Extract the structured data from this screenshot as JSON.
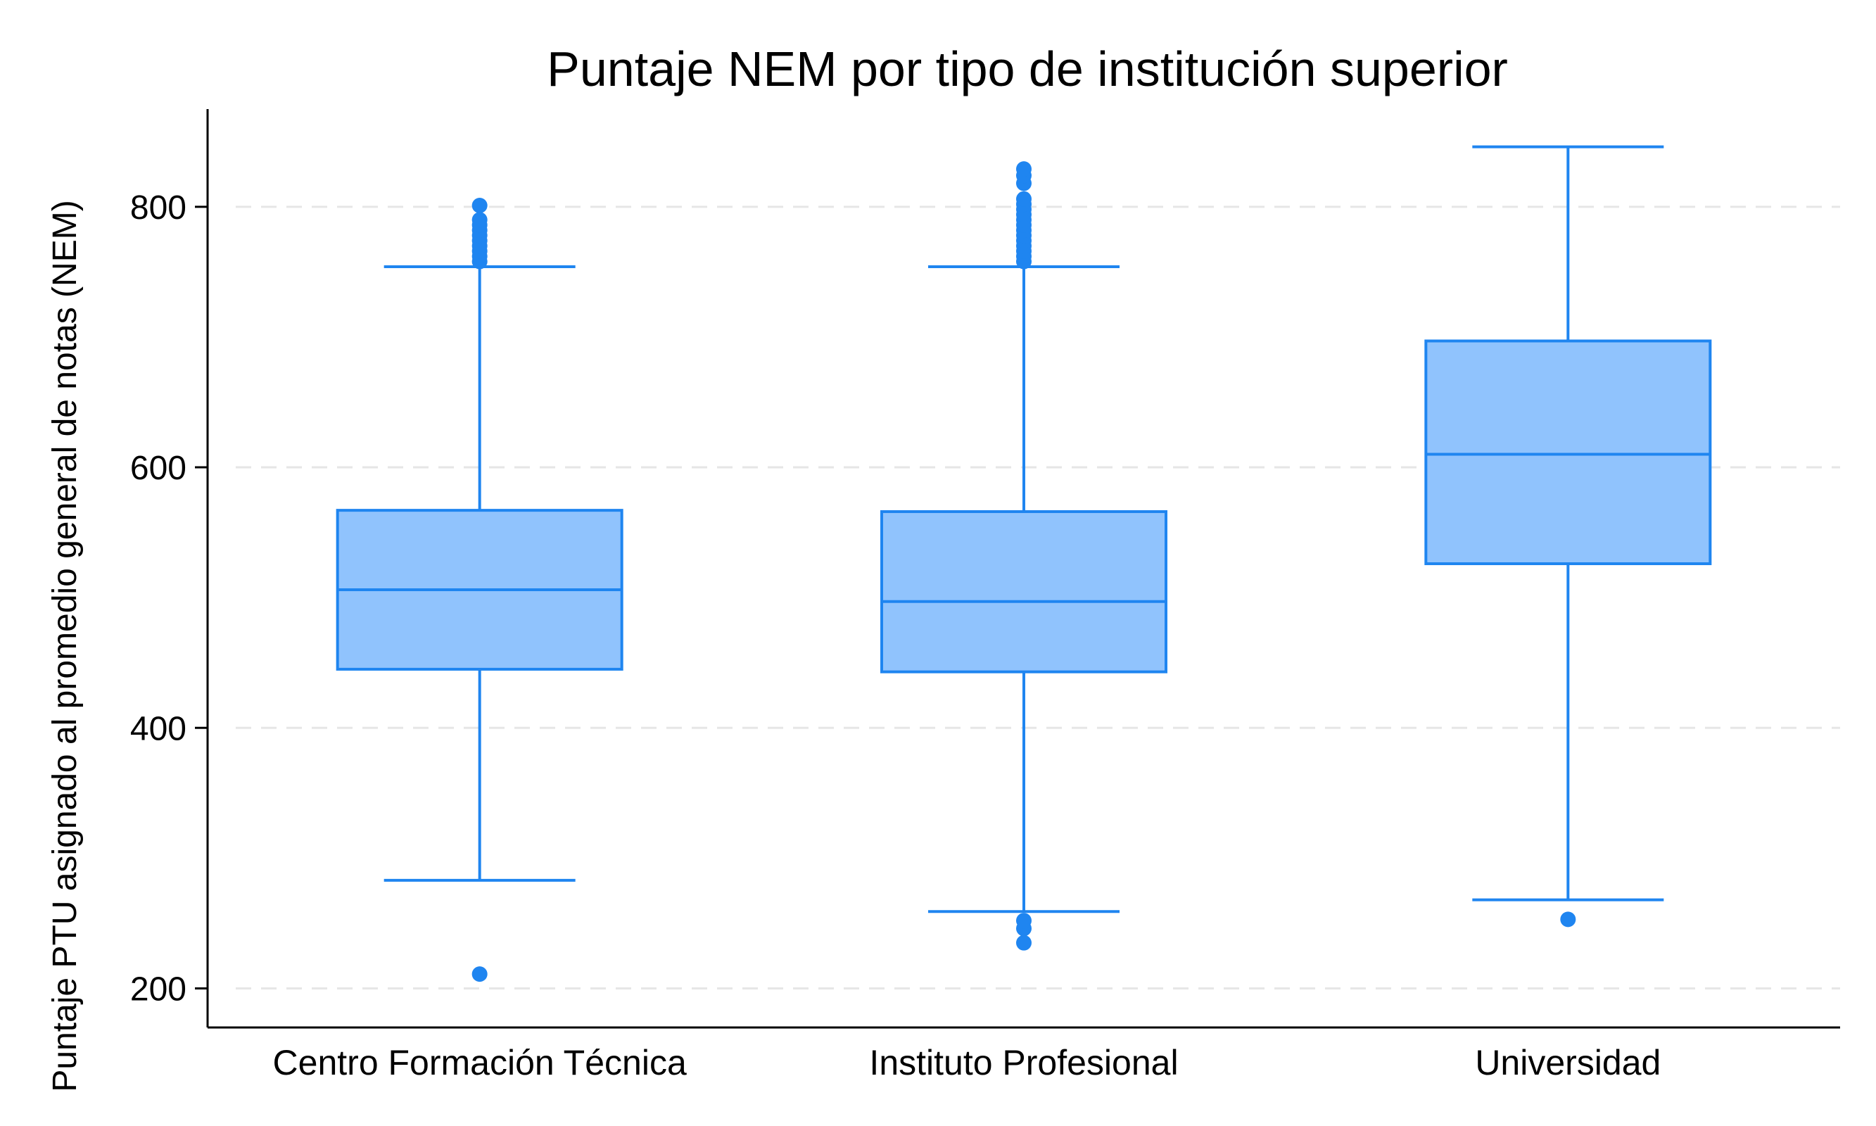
{
  "chart_data": {
    "type": "boxplot",
    "title": "Puntaje NEM por tipo de institución superior",
    "xlabel": "",
    "ylabel": "Puntaje PTU asignado al promedio general de notas (NEM)",
    "ylim": [
      170,
      875
    ],
    "yticks": [
      200,
      400,
      600,
      800
    ],
    "grid": "horizontal dashed",
    "categories": [
      "Centro Formación Técnica",
      "Instituto Profesional",
      "Universidad"
    ],
    "boxes": [
      {
        "whisker_low": 283,
        "q1": 445,
        "median": 506,
        "q3": 567,
        "whisker_high": 754,
        "outliers": [
          211,
          758,
          762,
          766,
          770,
          774,
          778,
          782,
          786,
          790,
          801
        ]
      },
      {
        "whisker_low": 259,
        "q1": 443,
        "median": 497,
        "q3": 566,
        "whisker_high": 754,
        "outliers": [
          235,
          246,
          252,
          758,
          762,
          766,
          770,
          774,
          778,
          782,
          786,
          790,
          794,
          798,
          802,
          806,
          818,
          824,
          829
        ]
      },
      {
        "whisker_low": 268,
        "q1": 526,
        "median": 610,
        "q3": 697,
        "whisker_high": 846,
        "outliers": [
          253
        ]
      }
    ],
    "colors": {
      "fill": "#90c3fd",
      "stroke": "#1f85f0",
      "grid": "#e6e6e6",
      "axis": "#000000"
    }
  }
}
